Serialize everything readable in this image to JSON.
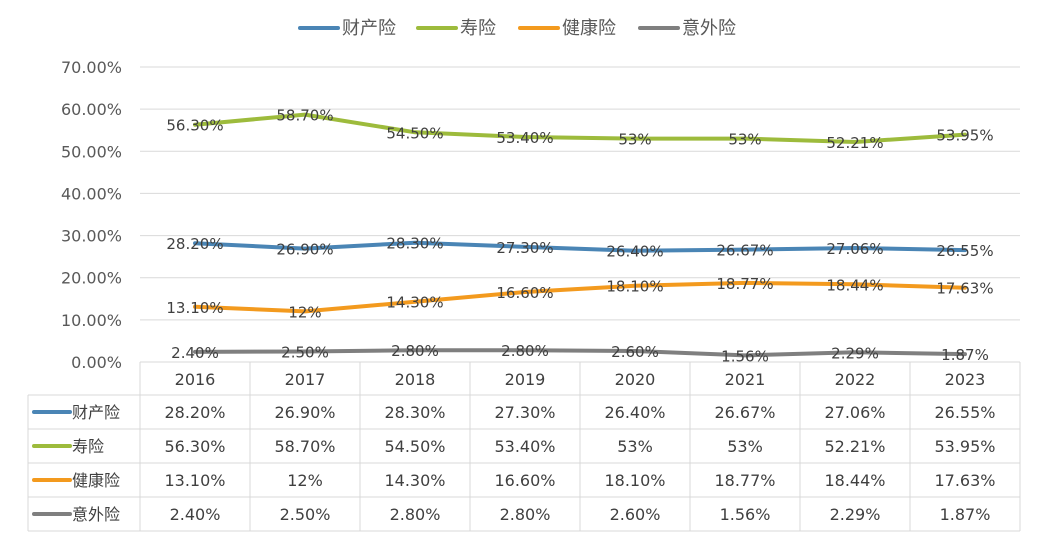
{
  "chart_data": {
    "type": "line",
    "title": "",
    "xlabel": "",
    "ylabel": "",
    "categories": [
      "2016",
      "2017",
      "2018",
      "2019",
      "2020",
      "2021",
      "2022",
      "2023"
    ],
    "ylim": [
      0,
      70
    ],
    "y_ticks": [
      "0.00%",
      "10.00%",
      "20.00%",
      "30.00%",
      "40.00%",
      "50.00%",
      "60.00%",
      "70.00%"
    ],
    "grid": true,
    "legend_position": "top-center",
    "data_table": true,
    "series": [
      {
        "name": "财产险",
        "color": "#4A85B5",
        "values": [
          28.2,
          26.9,
          28.3,
          27.3,
          26.4,
          26.67,
          27.06,
          26.55
        ],
        "labels": [
          "28.20%",
          "26.90%",
          "28.30%",
          "27.30%",
          "26.40%",
          "26.67%",
          "27.06%",
          "26.55%"
        ]
      },
      {
        "name": "寿险",
        "color": "#9DBB3C",
        "values": [
          56.3,
          58.7,
          54.5,
          53.4,
          53,
          53,
          52.21,
          53.95
        ],
        "labels": [
          "56.30%",
          "58.70%",
          "54.50%",
          "53.40%",
          "53%",
          "53%",
          "52.21%",
          "53.95%"
        ]
      },
      {
        "name": "健康险",
        "color": "#F39A1E",
        "values": [
          13.1,
          12,
          14.3,
          16.6,
          18.1,
          18.77,
          18.44,
          17.63
        ],
        "labels": [
          "13.10%",
          "12%",
          "14.30%",
          "16.60%",
          "18.10%",
          "18.77%",
          "18.44%",
          "17.63%"
        ]
      },
      {
        "name": "意外险",
        "color": "#7F7F7F",
        "values": [
          2.4,
          2.5,
          2.8,
          2.8,
          2.6,
          1.56,
          2.29,
          1.87
        ],
        "labels": [
          "2.40%",
          "2.50%",
          "2.80%",
          "2.80%",
          "2.60%",
          "1.56%",
          "2.29%",
          "1.87%"
        ]
      }
    ]
  }
}
